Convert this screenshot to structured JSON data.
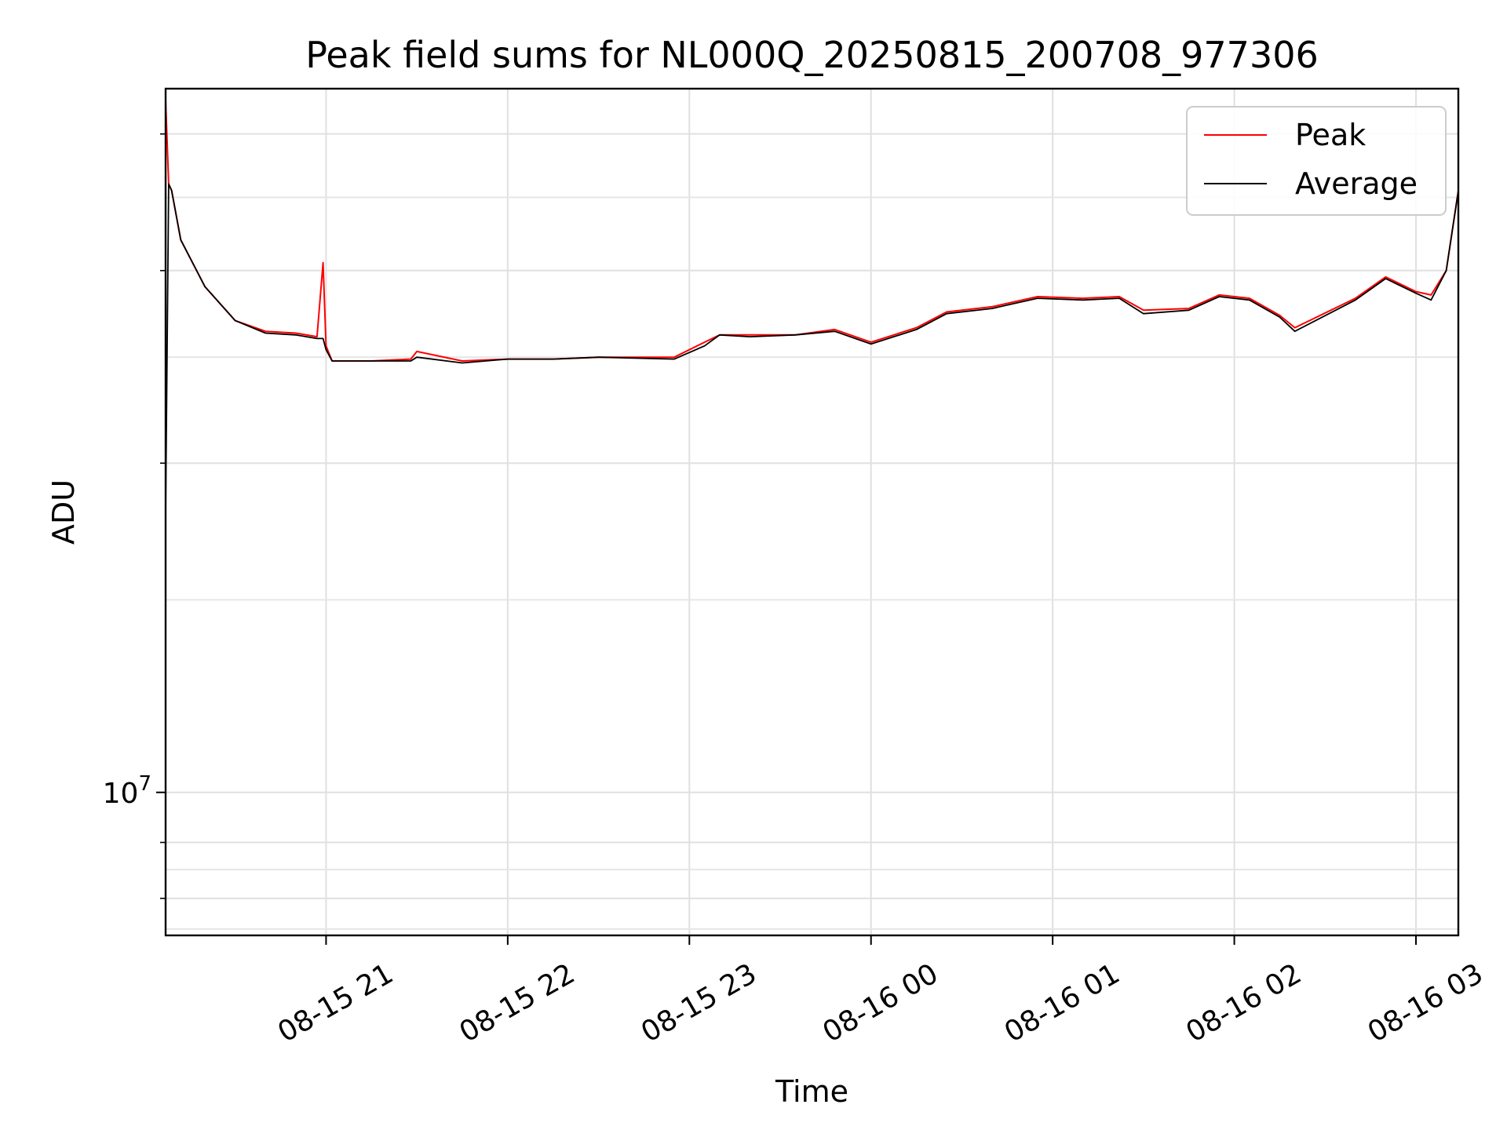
{
  "chart_data": {
    "type": "line",
    "title": "Peak field sums for NL000Q_20250815_200708_977306",
    "xlabel": "Time",
    "ylabel": "ADU",
    "x_ticks": [
      "08-15 21",
      "08-15 22",
      "08-15 23",
      "08-16 00",
      "08-16 01",
      "08-16 02",
      "08-16 03"
    ],
    "y_tick_label": "10^7",
    "y_scale": "log",
    "xlim": [
      "2025-08-15 20:07",
      "2025-08-16 03:14"
    ],
    "ylim": [
      7400000,
      44000000
    ],
    "grid": true,
    "legend_position": "top-right",
    "series": [
      {
        "name": "Peak",
        "color": "#ff0000",
        "x": [
          "2025-08-15 20:07",
          "2025-08-15 20:08",
          "2025-08-15 20:09",
          "2025-08-15 20:12",
          "2025-08-15 20:20",
          "2025-08-15 20:30",
          "2025-08-15 20:40",
          "2025-08-15 20:50",
          "2025-08-15 20:57",
          "2025-08-15 20:59",
          "2025-08-15 21:00",
          "2025-08-15 21:02",
          "2025-08-15 21:15",
          "2025-08-15 21:28",
          "2025-08-15 21:30",
          "2025-08-15 21:45",
          "2025-08-15 22:00",
          "2025-08-15 22:15",
          "2025-08-15 22:30",
          "2025-08-15 22:55",
          "2025-08-15 23:05",
          "2025-08-15 23:10",
          "2025-08-15 23:20",
          "2025-08-15 23:35",
          "2025-08-15 23:48",
          "2025-08-16 00:00",
          "2025-08-16 00:15",
          "2025-08-16 00:25",
          "2025-08-16 00:40",
          "2025-08-16 00:55",
          "2025-08-16 01:10",
          "2025-08-16 01:22",
          "2025-08-16 01:30",
          "2025-08-16 01:45",
          "2025-08-16 01:55",
          "2025-08-16 02:05",
          "2025-08-16 02:15",
          "2025-08-16 02:20",
          "2025-08-16 02:40",
          "2025-08-16 02:50",
          "2025-08-16 03:00",
          "2025-08-16 03:05",
          "2025-08-16 03:10",
          "2025-08-16 03:14"
        ],
        "values": [
          43000000,
          36000000,
          35500000,
          32000000,
          29000000,
          27000000,
          26400000,
          26300000,
          26100000,
          30500000,
          25600000,
          24800000,
          24800000,
          24900000,
          25300000,
          24800000,
          24900000,
          24900000,
          25000000,
          25000000,
          25800000,
          26200000,
          26200000,
          26200000,
          26500000,
          25800000,
          26600000,
          27500000,
          27800000,
          28400000,
          28300000,
          28400000,
          27600000,
          27700000,
          28500000,
          28300000,
          27300000,
          26600000,
          28300000,
          29600000,
          28700000,
          28500000,
          30000000,
          35500000
        ]
      },
      {
        "name": "Average",
        "color": "#000000",
        "x": [
          "2025-08-15 20:07",
          "2025-08-15 20:08",
          "2025-08-15 20:09",
          "2025-08-15 20:12",
          "2025-08-15 20:20",
          "2025-08-15 20:30",
          "2025-08-15 20:40",
          "2025-08-15 20:50",
          "2025-08-15 20:57",
          "2025-08-15 20:59",
          "2025-08-15 21:00",
          "2025-08-15 21:02",
          "2025-08-15 21:15",
          "2025-08-15 21:28",
          "2025-08-15 21:30",
          "2025-08-15 21:45",
          "2025-08-15 22:00",
          "2025-08-15 22:15",
          "2025-08-15 22:30",
          "2025-08-15 22:55",
          "2025-08-15 23:05",
          "2025-08-15 23:10",
          "2025-08-15 23:20",
          "2025-08-15 23:35",
          "2025-08-15 23:48",
          "2025-08-16 00:00",
          "2025-08-16 00:15",
          "2025-08-16 00:25",
          "2025-08-16 00:40",
          "2025-08-16 00:55",
          "2025-08-16 01:10",
          "2025-08-16 01:22",
          "2025-08-16 01:30",
          "2025-08-16 01:45",
          "2025-08-16 01:55",
          "2025-08-16 02:05",
          "2025-08-16 02:15",
          "2025-08-16 02:20",
          "2025-08-16 02:40",
          "2025-08-16 02:50",
          "2025-08-16 03:00",
          "2025-08-16 03:05",
          "2025-08-16 03:10",
          "2025-08-16 03:14"
        ],
        "values": [
          18000000,
          36000000,
          35500000,
          32000000,
          29000000,
          27000000,
          26300000,
          26200000,
          26000000,
          26000000,
          25400000,
          24800000,
          24800000,
          24800000,
          25000000,
          24700000,
          24900000,
          24900000,
          25000000,
          24900000,
          25600000,
          26200000,
          26100000,
          26200000,
          26400000,
          25700000,
          26500000,
          27400000,
          27700000,
          28300000,
          28200000,
          28300000,
          27400000,
          27600000,
          28400000,
          28200000,
          27200000,
          26400000,
          28200000,
          29500000,
          28600000,
          28200000,
          30000000,
          35500000
        ]
      }
    ]
  }
}
